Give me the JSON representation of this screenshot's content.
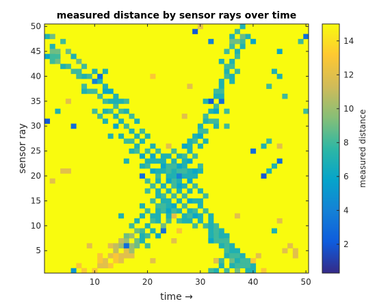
{
  "chart_data": {
    "type": "heatmap",
    "title": "measured distance by sensor rays over time",
    "xlabel": "time →",
    "ylabel": "sensor ray",
    "colorbar_label": "measured distance",
    "x_range": [
      1,
      50
    ],
    "y_range": [
      1,
      50
    ],
    "x_ticks": [
      10,
      20,
      30,
      40,
      50
    ],
    "y_ticks": [
      5,
      10,
      15,
      20,
      25,
      30,
      35,
      40,
      45,
      50
    ],
    "colorbar_range": [
      0.3,
      15
    ],
    "colorbar_ticks": [
      2,
      4,
      6,
      8,
      10,
      12,
      14
    ],
    "colormap": [
      "#352a87",
      "#0f5cdd",
      "#1481d6",
      "#06a4ca",
      "#2eb7a4",
      "#87bf77",
      "#d1bb59",
      "#fec832",
      "#f9fb0e"
    ],
    "background_value": 15,
    "cells": [
      [
        1,
        48,
        7
      ],
      [
        2,
        46,
        7
      ],
      [
        2,
        45,
        9
      ],
      [
        3,
        44,
        8
      ],
      [
        1,
        44,
        6
      ],
      [
        2,
        43,
        8
      ],
      [
        3,
        43,
        9
      ],
      [
        4,
        42,
        7
      ],
      [
        4,
        47,
        8
      ],
      [
        5,
        42,
        8
      ],
      [
        5,
        45,
        9
      ],
      [
        6,
        41,
        8
      ],
      [
        6,
        44,
        7
      ],
      [
        7,
        41,
        7
      ],
      [
        7,
        43,
        9
      ],
      [
        8,
        40,
        7
      ],
      [
        9,
        40,
        8
      ],
      [
        9,
        37,
        8
      ],
      [
        10,
        39,
        4
      ],
      [
        11,
        39,
        7
      ],
      [
        11,
        36,
        8
      ],
      [
        12,
        38,
        7
      ],
      [
        12,
        37,
        6
      ],
      [
        13,
        37,
        8
      ],
      [
        13,
        35,
        7
      ],
      [
        14,
        36,
        7
      ],
      [
        14,
        34,
        8
      ],
      [
        14,
        32,
        7
      ],
      [
        15,
        35,
        7
      ],
      [
        15,
        33,
        8
      ],
      [
        15,
        31,
        7
      ],
      [
        16,
        33,
        7
      ],
      [
        16,
        30,
        8
      ],
      [
        17,
        32,
        8
      ],
      [
        17,
        29,
        7
      ],
      [
        18,
        31,
        7
      ],
      [
        18,
        28,
        7
      ],
      [
        19,
        29,
        8
      ],
      [
        19,
        27,
        7
      ],
      [
        20,
        28,
        7
      ],
      [
        20,
        25,
        8
      ],
      [
        21,
        26,
        7
      ],
      [
        21,
        24,
        6
      ],
      [
        22,
        25,
        8
      ],
      [
        22,
        23,
        7
      ],
      [
        23,
        24,
        7
      ],
      [
        23,
        22,
        6
      ],
      [
        24,
        22,
        8
      ],
      [
        24,
        20,
        7
      ],
      [
        25,
        21,
        7
      ],
      [
        25,
        19,
        8
      ],
      [
        26,
        19,
        7
      ],
      [
        26,
        18,
        6
      ],
      [
        27,
        18,
        7
      ],
      [
        27,
        16,
        8
      ],
      [
        28,
        17,
        7
      ],
      [
        28,
        15,
        6
      ],
      [
        29,
        15,
        7
      ],
      [
        29,
        13,
        8
      ],
      [
        30,
        14,
        7
      ],
      [
        30,
        12,
        7
      ],
      [
        31,
        13,
        8
      ],
      [
        32,
        11,
        7
      ],
      [
        33,
        10,
        8
      ],
      [
        34,
        9,
        7
      ],
      [
        34,
        7,
        8
      ],
      [
        35,
        8,
        7
      ],
      [
        35,
        6,
        8
      ],
      [
        36,
        6,
        7
      ],
      [
        36,
        4,
        8
      ],
      [
        37,
        5,
        7
      ],
      [
        38,
        3,
        8
      ],
      [
        38,
        2,
        7
      ],
      [
        39,
        2,
        8
      ],
      [
        40,
        1,
        7
      ],
      [
        33,
        3,
        8
      ],
      [
        34,
        2,
        7
      ],
      [
        36,
        3,
        9
      ],
      [
        35,
        1,
        8
      ],
      [
        37,
        1,
        9
      ],
      [
        40,
        47,
        6
      ],
      [
        39,
        48,
        7
      ],
      [
        38,
        47,
        8
      ],
      [
        38,
        46,
        7
      ],
      [
        37,
        45,
        7
      ],
      [
        37,
        44,
        8
      ],
      [
        36,
        43,
        7
      ],
      [
        36,
        42,
        8
      ],
      [
        35,
        41,
        7
      ],
      [
        35,
        40,
        8
      ],
      [
        34,
        39,
        7
      ],
      [
        34,
        38,
        7
      ],
      [
        33,
        37,
        8
      ],
      [
        33,
        36,
        7
      ],
      [
        33,
        34,
        8
      ],
      [
        32,
        35,
        7
      ],
      [
        32,
        33,
        7
      ],
      [
        31,
        32,
        8
      ],
      [
        31,
        31,
        7
      ],
      [
        30,
        30,
        7
      ],
      [
        30,
        29,
        8
      ],
      [
        29,
        28,
        7
      ],
      [
        29,
        27,
        8
      ],
      [
        28,
        26,
        7
      ],
      [
        28,
        25,
        7
      ],
      [
        27,
        24,
        8
      ],
      [
        27,
        23,
        7
      ],
      [
        26,
        22,
        7
      ],
      [
        26,
        21,
        8
      ],
      [
        25,
        20,
        7
      ],
      [
        25,
        18,
        8
      ],
      [
        24,
        17,
        7
      ],
      [
        23,
        16,
        8
      ],
      [
        23,
        15,
        7
      ],
      [
        22,
        14,
        8
      ],
      [
        22,
        13,
        7
      ],
      [
        21,
        12,
        7
      ],
      [
        21,
        11,
        8
      ],
      [
        20,
        10,
        7
      ],
      [
        19,
        9,
        8
      ],
      [
        19,
        8,
        7
      ],
      [
        18,
        7,
        9
      ],
      [
        17,
        6,
        10
      ],
      [
        17,
        8,
        10
      ],
      [
        16,
        5,
        12
      ],
      [
        16,
        7,
        10
      ],
      [
        15,
        6,
        10
      ],
      [
        15,
        4,
        12
      ],
      [
        14,
        5,
        11
      ],
      [
        14,
        3,
        13
      ],
      [
        13,
        4,
        12
      ],
      [
        13,
        2,
        13
      ],
      [
        12,
        3,
        12
      ],
      [
        11,
        2,
        12
      ],
      [
        10,
        1,
        13
      ],
      [
        8,
        1,
        13
      ],
      [
        7,
        2,
        13
      ],
      [
        18,
        9,
        9
      ],
      [
        16,
        6,
        3
      ],
      [
        17,
        4,
        12
      ],
      [
        13,
        6,
        12
      ],
      [
        21,
        3,
        12
      ],
      [
        11,
        4,
        13
      ],
      [
        4,
        21,
        12
      ],
      [
        5,
        21,
        12
      ],
      [
        2,
        19,
        12
      ],
      [
        3,
        33,
        7
      ],
      [
        1,
        31,
        2
      ],
      [
        6,
        30,
        3
      ],
      [
        5,
        35,
        12
      ],
      [
        11,
        32,
        8
      ],
      [
        15,
        12,
        7
      ],
      [
        19,
        14,
        7
      ],
      [
        16,
        23,
        7
      ],
      [
        18,
        26,
        7
      ],
      [
        13,
        28,
        7
      ],
      [
        24,
        26,
        12
      ],
      [
        27,
        32,
        12
      ],
      [
        28,
        38,
        12
      ],
      [
        21,
        40,
        13
      ],
      [
        30,
        50,
        12
      ],
      [
        32,
        47,
        4
      ],
      [
        29,
        49,
        2
      ],
      [
        32,
        35,
        2
      ],
      [
        34,
        35,
        3
      ],
      [
        35,
        33,
        8
      ],
      [
        35,
        30,
        8
      ],
      [
        33,
        33,
        6
      ],
      [
        32,
        31,
        8
      ],
      [
        31,
        27,
        7
      ],
      [
        30,
        26,
        7
      ],
      [
        29,
        24,
        8
      ],
      [
        28,
        23,
        6
      ],
      [
        27,
        22,
        7
      ],
      [
        26,
        20,
        4
      ],
      [
        24,
        19,
        6
      ],
      [
        23,
        18,
        7
      ],
      [
        22,
        17,
        7
      ],
      [
        21,
        15,
        8
      ],
      [
        20,
        13,
        8
      ],
      [
        19,
        12,
        7
      ],
      [
        18,
        11,
        7
      ],
      [
        17,
        10,
        8
      ],
      [
        19,
        20,
        3
      ],
      [
        21,
        21,
        6
      ],
      [
        22,
        20,
        8
      ],
      [
        23,
        23,
        7
      ],
      [
        24,
        24,
        7
      ],
      [
        25,
        25,
        8
      ],
      [
        26,
        24,
        7
      ],
      [
        27,
        26,
        6
      ],
      [
        28,
        27,
        7
      ],
      [
        30,
        28,
        6
      ],
      [
        31,
        29,
        8
      ],
      [
        30,
        15,
        7
      ],
      [
        31,
        16,
        8
      ],
      [
        30,
        17,
        7
      ],
      [
        29,
        18,
        8
      ],
      [
        28,
        19,
        6
      ],
      [
        27,
        20,
        7
      ],
      [
        26,
        17,
        7
      ],
      [
        25,
        16,
        8
      ],
      [
        24,
        15,
        7
      ],
      [
        23,
        13,
        8
      ],
      [
        22,
        12,
        7
      ],
      [
        24,
        11,
        8
      ],
      [
        23,
        10,
        9
      ],
      [
        22,
        11,
        7
      ],
      [
        23,
        9,
        3
      ],
      [
        25,
        14,
        6
      ],
      [
        26,
        15,
        7
      ],
      [
        27,
        14,
        8
      ],
      [
        28,
        13,
        7
      ],
      [
        29,
        12,
        6
      ],
      [
        30,
        11,
        7
      ],
      [
        31,
        10,
        8
      ],
      [
        32,
        9,
        7
      ],
      [
        33,
        8,
        8
      ],
      [
        34,
        6,
        7
      ],
      [
        35,
        5,
        8
      ],
      [
        36,
        5,
        7
      ],
      [
        37,
        4,
        8
      ],
      [
        38,
        4,
        7
      ],
      [
        39,
        3,
        8
      ],
      [
        40,
        2,
        7
      ],
      [
        45,
        45,
        6
      ],
      [
        44,
        41,
        7
      ],
      [
        45,
        40,
        7
      ],
      [
        43,
        38,
        8
      ],
      [
        46,
        36,
        8
      ],
      [
        50,
        33,
        8
      ],
      [
        49,
        47,
        8
      ],
      [
        50,
        48,
        3
      ],
      [
        43,
        27,
        8
      ],
      [
        42,
        26,
        7
      ],
      [
        40,
        25,
        3
      ],
      [
        45,
        26,
        12
      ],
      [
        44,
        22,
        7
      ],
      [
        45,
        23,
        3
      ],
      [
        42,
        20,
        2
      ],
      [
        43,
        21,
        7
      ],
      [
        45,
        11,
        12
      ],
      [
        44,
        9,
        7
      ],
      [
        47,
        6,
        12
      ],
      [
        46,
        5,
        12
      ],
      [
        41,
        4,
        12
      ],
      [
        40,
        3,
        13
      ],
      [
        42,
        1,
        13
      ],
      [
        33,
        3,
        12
      ],
      [
        6,
        1,
        5
      ],
      [
        25,
        12,
        12
      ],
      [
        25,
        7,
        12
      ],
      [
        26,
        9,
        13
      ],
      [
        37,
        12,
        12
      ],
      [
        9,
        6,
        12
      ],
      [
        2,
        48,
        9
      ],
      [
        3,
        45,
        9
      ],
      [
        2,
        44,
        8
      ],
      [
        6,
        44,
        7
      ],
      [
        8,
        42,
        8
      ],
      [
        10,
        41,
        7
      ],
      [
        11,
        40,
        3
      ],
      [
        12,
        41,
        7
      ],
      [
        13,
        37,
        6
      ],
      [
        14,
        35,
        7
      ],
      [
        16,
        35,
        8
      ],
      [
        13,
        33,
        8
      ],
      [
        10,
        33,
        8
      ],
      [
        7,
        41,
        8
      ],
      [
        10,
        37,
        8
      ],
      [
        12,
        35,
        8
      ],
      [
        8,
        38,
        8
      ],
      [
        38,
        50,
        7
      ],
      [
        37,
        49,
        8
      ],
      [
        36,
        48,
        7
      ],
      [
        36,
        47,
        9
      ],
      [
        35,
        45,
        8
      ],
      [
        38,
        48,
        9
      ],
      [
        37,
        47,
        9
      ],
      [
        36,
        46,
        8
      ],
      [
        34,
        43,
        7
      ],
      [
        35,
        42,
        8
      ],
      [
        37,
        41,
        8
      ],
      [
        36,
        40,
        7
      ],
      [
        36,
        39,
        7
      ],
      [
        34,
        37,
        8
      ],
      [
        34,
        36,
        7
      ],
      [
        31,
        35,
        7
      ],
      [
        33,
        31,
        8
      ],
      [
        33,
        30,
        7
      ],
      [
        7,
        40,
        8
      ],
      [
        8,
        37,
        7
      ],
      [
        12,
        33,
        7
      ],
      [
        12,
        31,
        7
      ],
      [
        14,
        30,
        6
      ],
      [
        15,
        28,
        7
      ],
      [
        16,
        27,
        8
      ],
      [
        17,
        27,
        8
      ],
      [
        17,
        25,
        7
      ],
      [
        18,
        25,
        8
      ],
      [
        19,
        24,
        6
      ],
      [
        20,
        23,
        7
      ],
      [
        20,
        22,
        8
      ],
      [
        21,
        23,
        7
      ],
      [
        19,
        22,
        7
      ],
      [
        20,
        19,
        8
      ],
      [
        22,
        21,
        7
      ],
      [
        21,
        18,
        8
      ],
      [
        22,
        19,
        7
      ],
      [
        20,
        17,
        8
      ],
      [
        25,
        23,
        7
      ],
      [
        26,
        22,
        6
      ],
      [
        27,
        21,
        8
      ],
      [
        28,
        20,
        7
      ],
      [
        28,
        21,
        7
      ],
      [
        29,
        20,
        7
      ],
      [
        29,
        21,
        6
      ],
      [
        30,
        22,
        8
      ],
      [
        30,
        21,
        7
      ],
      [
        23,
        21,
        7
      ],
      [
        24,
        21,
        8
      ],
      [
        25,
        22,
        8
      ],
      [
        22,
        16,
        7
      ],
      [
        23,
        14,
        8
      ],
      [
        24,
        14,
        7
      ],
      [
        24,
        13,
        6
      ],
      [
        25,
        13,
        8
      ],
      [
        26,
        13,
        7
      ],
      [
        26,
        11,
        8
      ],
      [
        27,
        12,
        7
      ],
      [
        27,
        11,
        7
      ],
      [
        28,
        12,
        8
      ],
      [
        28,
        11,
        7
      ],
      [
        29,
        10,
        8
      ],
      [
        24,
        12,
        7
      ],
      [
        22,
        8,
        6
      ],
      [
        21,
        9,
        7
      ],
      [
        20,
        8,
        8
      ],
      [
        19,
        7,
        7
      ],
      [
        18,
        6,
        9
      ],
      [
        17,
        5,
        10
      ],
      [
        16,
        4,
        12
      ],
      [
        15,
        3,
        12
      ],
      [
        14,
        4,
        13
      ],
      [
        12,
        2,
        12
      ],
      [
        11,
        3,
        13
      ],
      [
        16,
        8,
        9
      ],
      [
        15,
        7,
        11
      ],
      [
        14,
        6,
        11
      ],
      [
        20,
        6,
        8
      ],
      [
        32,
        12,
        7
      ],
      [
        32,
        10,
        7
      ],
      [
        33,
        9,
        8
      ],
      [
        32,
        8,
        7
      ],
      [
        33,
        7,
        8
      ],
      [
        32,
        7,
        6
      ],
      [
        34,
        8,
        7
      ],
      [
        35,
        7,
        8
      ],
      [
        35,
        4,
        7
      ],
      [
        36,
        4,
        8
      ],
      [
        37,
        3,
        7
      ],
      [
        38,
        2,
        8
      ],
      [
        39,
        1,
        7
      ],
      [
        37,
        2,
        8
      ],
      [
        36,
        2,
        7
      ],
      [
        34,
        3,
        8
      ],
      [
        33,
        1,
        7
      ],
      [
        32,
        1,
        8
      ],
      [
        48,
        5,
        12
      ],
      [
        48,
        4,
        12
      ]
    ]
  }
}
